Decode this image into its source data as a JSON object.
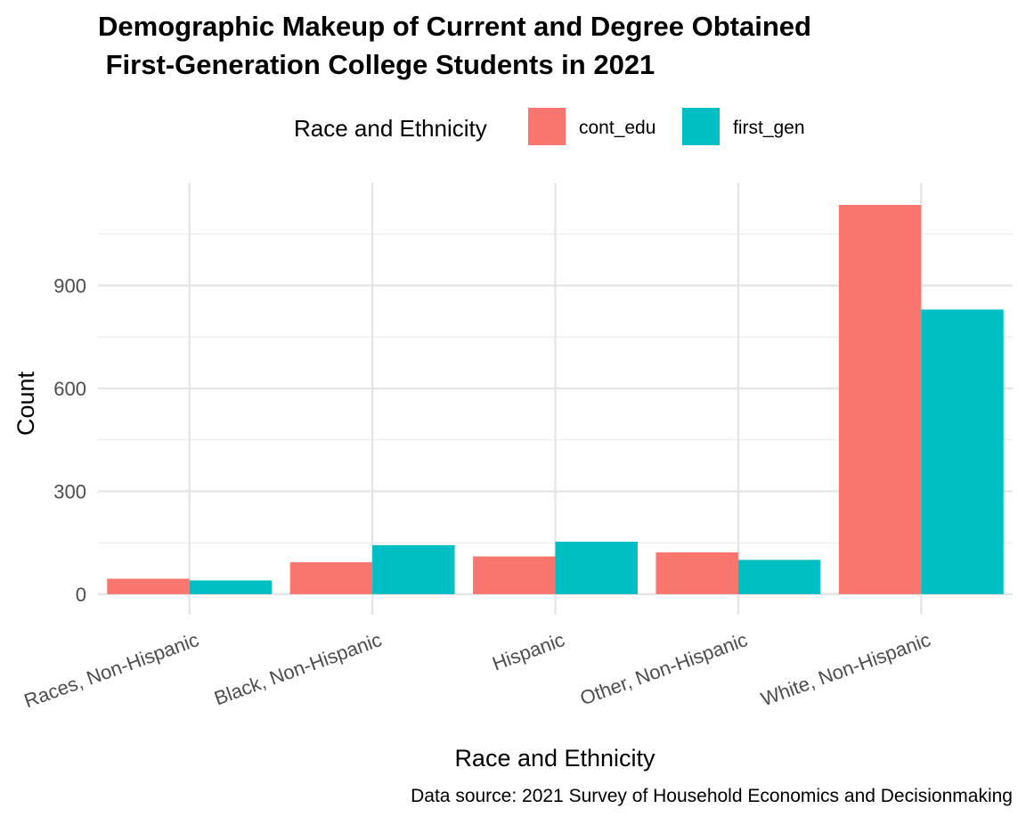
{
  "chart_data": {
    "type": "bar",
    "title_line1": "Demographic Makeup of Current and Degree Obtained",
    "title_line2": " First-Generation College Students in 2021",
    "xlabel": "Race and Ethnicity",
    "ylabel": "Count",
    "caption": "Data source: 2021 Survey of Household Economics and Decisionmaking",
    "legend_title": "Race and Ethnicity",
    "legend_position": "top",
    "grid": true,
    "ylim": [
      -60,
      1200
    ],
    "yticks": [
      0,
      300,
      600,
      900
    ],
    "categories": [
      "Races, Non-Hispanic",
      "Black, Non-Hispanic",
      "Hispanic",
      "Other, Non-Hispanic",
      "White, Non-Hispanic"
    ],
    "series": [
      {
        "name": "cont_edu",
        "color": "#F8766D",
        "values": [
          45,
          93,
          110,
          122,
          1135
        ]
      },
      {
        "name": "first_gen",
        "color": "#00BFC4",
        "values": [
          40,
          143,
          153,
          100,
          830
        ]
      }
    ]
  }
}
